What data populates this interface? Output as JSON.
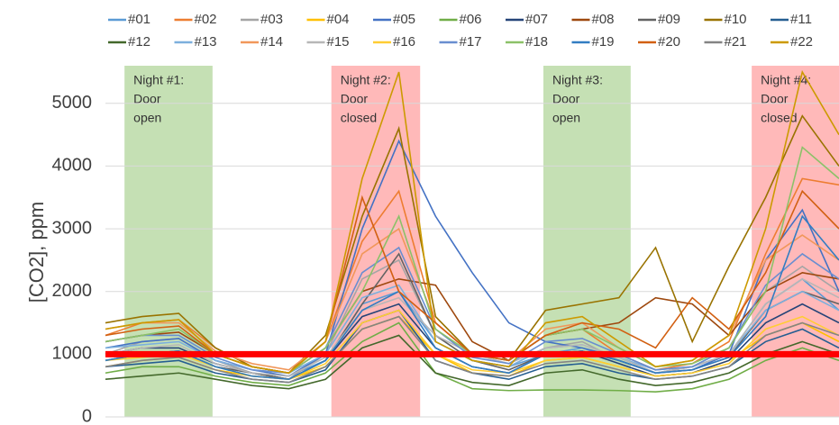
{
  "chart_data": {
    "type": "line",
    "y_label": "[CO2], ppm",
    "xlim": [
      0,
      100
    ],
    "ylim": [
      0,
      5600
    ],
    "yticks": [
      0,
      1000,
      2000,
      3000,
      4000,
      5000
    ],
    "grid": true,
    "legend": "top",
    "threshold": {
      "value": 1000,
      "color": "#ff0000"
    },
    "bands": [
      {
        "lines": [
          "Night #1:",
          "Door",
          "open"
        ],
        "x": [
          2.6,
          14.6
        ],
        "color": "#c5e0b4"
      },
      {
        "lines": [
          "Night #2:",
          "Door",
          "closed"
        ],
        "x": [
          30.8,
          42.9
        ],
        "color": "#ffb9b9"
      },
      {
        "lines": [
          "Night #3:",
          "Door",
          "open"
        ],
        "x": [
          59.7,
          71.6
        ],
        "color": "#c5e0b4"
      },
      {
        "lines": [
          "Night #4:",
          "Door",
          "closed"
        ],
        "x": [
          88.1,
          100
        ],
        "color": "#ffb9b9"
      }
    ],
    "x": [
      0,
      5,
      10,
      15,
      20,
      25,
      30,
      35,
      40,
      45,
      50,
      55,
      60,
      65,
      70,
      75,
      80,
      85,
      90,
      95,
      100
    ],
    "series": [
      {
        "name": "#01",
        "color": "#5b9bd5",
        "values": [
          900,
          1000,
          1050,
          800,
          700,
          650,
          900,
          1800,
          2000,
          1200,
          900,
          800,
          1000,
          1100,
          900,
          700,
          800,
          1000,
          1800,
          2200,
          1700
        ]
      },
      {
        "name": "#02",
        "color": "#ed7d31",
        "values": [
          1300,
          1500,
          1550,
          1100,
          800,
          700,
          1200,
          2800,
          3600,
          1500,
          1000,
          900,
          1300,
          1400,
          1000,
          750,
          850,
          1200,
          2600,
          3800,
          3700
        ]
      },
      {
        "name": "#03",
        "color": "#a5a5a5",
        "values": [
          1000,
          1200,
          1250,
          900,
          700,
          600,
          1000,
          2200,
          2500,
          1300,
          900,
          800,
          1100,
          1200,
          900,
          700,
          800,
          1100,
          2000,
          2400,
          2000
        ]
      },
      {
        "name": "#04",
        "color": "#ffc000",
        "values": [
          800,
          900,
          950,
          750,
          650,
          600,
          800,
          1400,
          1600,
          1000,
          700,
          650,
          900,
          950,
          800,
          650,
          700,
          900,
          1300,
          1500,
          1200
        ]
      },
      {
        "name": "#05",
        "color": "#4472c4",
        "values": [
          1100,
          1200,
          1250,
          900,
          750,
          650,
          1000,
          3000,
          4400,
          3200,
          2300,
          1500,
          1200,
          1100,
          950,
          700,
          750,
          1000,
          2500,
          3300,
          2000
        ]
      },
      {
        "name": "#06",
        "color": "#70ad47",
        "values": [
          700,
          800,
          800,
          650,
          550,
          500,
          700,
          1200,
          1500,
          700,
          450,
          420,
          430,
          430,
          420,
          400,
          450,
          600,
          900,
          1100,
          900
        ]
      },
      {
        "name": "#07",
        "color": "#264478",
        "values": [
          1000,
          1100,
          1100,
          850,
          700,
          600,
          900,
          1600,
          1800,
          1100,
          800,
          700,
          1000,
          1050,
          850,
          650,
          700,
          900,
          1500,
          1800,
          1500
        ]
      },
      {
        "name": "#08",
        "color": "#9e480e",
        "values": [
          1200,
          1300,
          1350,
          1000,
          800,
          700,
          1100,
          2000,
          2200,
          2100,
          1200,
          900,
          1300,
          1400,
          1500,
          1900,
          1800,
          1300,
          2000,
          2300,
          2200
        ]
      },
      {
        "name": "#09",
        "color": "#636363",
        "values": [
          900,
          1000,
          1050,
          800,
          700,
          600,
          900,
          1800,
          2600,
          1300,
          900,
          750,
          1000,
          1050,
          900,
          700,
          750,
          950,
          1700,
          2000,
          1800
        ]
      },
      {
        "name": "#10",
        "color": "#997300",
        "values": [
          1500,
          1600,
          1650,
          1100,
          800,
          700,
          1300,
          3200,
          4600,
          1600,
          1000,
          900,
          1700,
          1800,
          1900,
          2700,
          1200,
          2400,
          3500,
          4800,
          4000
        ]
      },
      {
        "name": "#11",
        "color": "#255e91",
        "values": [
          800,
          850,
          900,
          700,
          600,
          550,
          750,
          1500,
          1700,
          900,
          700,
          600,
          800,
          850,
          700,
          600,
          650,
          800,
          1200,
          1400,
          1100
        ]
      },
      {
        "name": "#12",
        "color": "#43682b",
        "values": [
          600,
          650,
          700,
          600,
          500,
          450,
          600,
          1100,
          1300,
          700,
          550,
          500,
          700,
          750,
          600,
          500,
          550,
          700,
          1000,
          1200,
          1000
        ]
      },
      {
        "name": "#13",
        "color": "#7cafdd",
        "values": [
          1100,
          1150,
          1200,
          900,
          750,
          700,
          1000,
          1900,
          2100,
          1200,
          900,
          800,
          1100,
          1150,
          950,
          750,
          800,
          1000,
          1700,
          2000,
          1700
        ]
      },
      {
        "name": "#14",
        "color": "#f1975a",
        "values": [
          1400,
          1500,
          1500,
          1050,
          850,
          750,
          1200,
          2600,
          3000,
          1500,
          1000,
          900,
          1400,
          1500,
          1100,
          800,
          900,
          1300,
          2500,
          2900,
          2500
        ]
      },
      {
        "name": "#15",
        "color": "#b7b7b7",
        "values": [
          1000,
          1100,
          1150,
          850,
          700,
          650,
          950,
          1700,
          1900,
          1300,
          1000,
          850,
          1100,
          1150,
          950,
          700,
          800,
          1000,
          1800,
          2200,
          1900
        ]
      },
      {
        "name": "#16",
        "color": "#ffcd33",
        "values": [
          900,
          950,
          1000,
          800,
          650,
          600,
          850,
          1500,
          1700,
          1000,
          750,
          700,
          900,
          950,
          800,
          650,
          700,
          850,
          1400,
          1600,
          1300
        ]
      },
      {
        "name": "#17",
        "color": "#698ed0",
        "values": [
          1200,
          1300,
          1300,
          950,
          750,
          700,
          1100,
          2300,
          2700,
          1400,
          950,
          850,
          1200,
          1250,
          1000,
          750,
          800,
          1100,
          2100,
          2600,
          2200
        ]
      },
      {
        "name": "#18",
        "color": "#8cc168",
        "values": [
          1200,
          1300,
          1400,
          1000,
          800,
          700,
          1100,
          2000,
          3200,
          1400,
          1000,
          900,
          1300,
          1400,
          1100,
          800,
          850,
          1100,
          2000,
          4300,
          3800
        ]
      },
      {
        "name": "#19",
        "color": "#327dc2",
        "values": [
          900,
          1000,
          1050,
          800,
          650,
          600,
          900,
          1700,
          2000,
          1100,
          800,
          700,
          1000,
          1050,
          900,
          700,
          750,
          950,
          1600,
          3200,
          2500
        ]
      },
      {
        "name": "#20",
        "color": "#d26012",
        "values": [
          1300,
          1400,
          1450,
          1000,
          800,
          700,
          1200,
          3500,
          2000,
          1500,
          1000,
          900,
          1300,
          1500,
          1400,
          1100,
          1900,
          1400,
          2300,
          3600,
          3000
        ]
      },
      {
        "name": "#21",
        "color": "#848484",
        "values": [
          800,
          900,
          950,
          750,
          600,
          550,
          800,
          1400,
          1600,
          900,
          700,
          650,
          850,
          900,
          750,
          600,
          650,
          800,
          1300,
          1500,
          1300
        ]
      },
      {
        "name": "#22",
        "color": "#cc9a00",
        "values": [
          1400,
          1500,
          1550,
          1000,
          800,
          700,
          1200,
          3800,
          5500,
          1200,
          900,
          800,
          1500,
          1600,
          1200,
          800,
          900,
          1300,
          3000,
          5500,
          4500
        ]
      }
    ]
  }
}
